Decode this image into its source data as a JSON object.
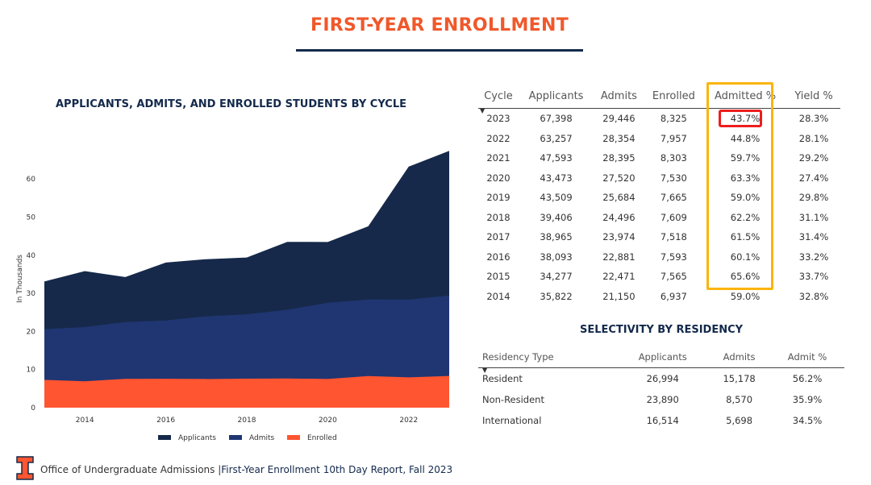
{
  "title": "FIRST-YEAR ENROLLMENT",
  "colors": {
    "accent": "#f0582b",
    "navy": "#13294b",
    "applicants": "#16294a",
    "admits": "#1f3672",
    "enrolled": "#ff5530",
    "highlight_column": "#fbb40c",
    "highlight_cell": "#ee1c1c"
  },
  "chart_data": {
    "type": "area",
    "title": "APPLICANTS, ADMITS, AND ENROLLED STUDENTS BY CYCLE",
    "xlabel": "",
    "ylabel": "In Thousands",
    "x": [
      2013,
      2014,
      2015,
      2016,
      2017,
      2018,
      2019,
      2020,
      2021,
      2022,
      2023
    ],
    "xticks": [
      "2014",
      "2016",
      "2018",
      "2020",
      "2022"
    ],
    "yticks": [
      "0",
      "10",
      "20",
      "30",
      "40",
      "50",
      "60"
    ],
    "ylim": [
      0,
      66
    ],
    "grid": false,
    "legend": "bottom",
    "series": [
      {
        "name": "Applicants",
        "values": [
          33.1,
          35.822,
          34.277,
          38.093,
          38.965,
          39.406,
          43.509,
          43.473,
          47.593,
          63.257,
          67.398
        ]
      },
      {
        "name": "Admits",
        "values": [
          20.6,
          21.15,
          22.471,
          22.881,
          23.974,
          24.496,
          25.684,
          27.52,
          28.395,
          28.354,
          29.446
        ]
      },
      {
        "name": "Enrolled",
        "values": [
          7.3,
          6.937,
          7.565,
          7.593,
          7.518,
          7.609,
          7.665,
          7.53,
          8.303,
          7.957,
          8.325
        ]
      }
    ]
  },
  "cycle_table": {
    "headers": [
      "Cycle",
      "Applicants",
      "Admits",
      "Enrolled",
      "Admitted %",
      "Yield %"
    ],
    "rows": [
      [
        "2023",
        "67,398",
        "29,446",
        "8,325",
        "43.7%",
        "28.3%"
      ],
      [
        "2022",
        "63,257",
        "28,354",
        "7,957",
        "44.8%",
        "28.1%"
      ],
      [
        "2021",
        "47,593",
        "28,395",
        "8,303",
        "59.7%",
        "29.2%"
      ],
      [
        "2020",
        "43,473",
        "27,520",
        "7,530",
        "63.3%",
        "27.4%"
      ],
      [
        "2019",
        "43,509",
        "25,684",
        "7,665",
        "59.0%",
        "29.8%"
      ],
      [
        "2018",
        "39,406",
        "24,496",
        "7,609",
        "62.2%",
        "31.1%"
      ],
      [
        "2017",
        "38,965",
        "23,974",
        "7,518",
        "61.5%",
        "31.4%"
      ],
      [
        "2016",
        "38,093",
        "22,881",
        "7,593",
        "60.1%",
        "33.2%"
      ],
      [
        "2015",
        "34,277",
        "22,471",
        "7,565",
        "65.6%",
        "33.7%"
      ],
      [
        "2014",
        "35,822",
        "21,150",
        "6,937",
        "59.0%",
        "32.8%"
      ]
    ]
  },
  "residency": {
    "title": "SELECTIVITY BY RESIDENCY",
    "headers": [
      "Residency Type",
      "Applicants",
      "Admits",
      "Admit %"
    ],
    "rows": [
      [
        "Resident",
        "26,994",
        "15,178",
        "56.2%"
      ],
      [
        "Non-Resident",
        "23,890",
        "8,570",
        "35.9%"
      ],
      [
        "International",
        "16,514",
        "5,698",
        "34.5%"
      ]
    ]
  },
  "footer": {
    "office": "Office of Undergraduate Admissions |",
    "report": "First-Year Enrollment 10th Day Report, Fall 2023",
    "logo_icon": "block-i-logo"
  }
}
